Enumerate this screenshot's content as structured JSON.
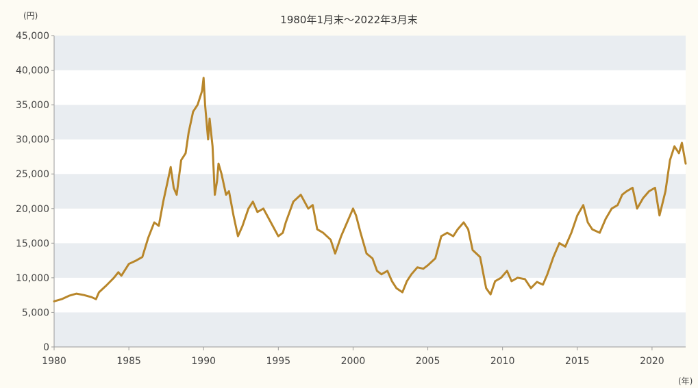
{
  "chart_data": {
    "type": "line",
    "title": "",
    "subtitle": "1980年1月末〜2022年3月末",
    "ylabel_unit": "(円)",
    "xlabel_unit": "(年)",
    "ylim": [
      0,
      45000
    ],
    "xlim": [
      1980,
      2022.25
    ],
    "yticks": [
      "0",
      "5,000",
      "10,000",
      "15,000",
      "20,000",
      "25,000",
      "30,000",
      "35,000",
      "40,000",
      "45,000"
    ],
    "ytick_values": [
      0,
      5000,
      10000,
      15000,
      20000,
      25000,
      30000,
      35000,
      40000,
      45000
    ],
    "xticks": [
      "1980",
      "1985",
      "1990",
      "1995",
      "2000",
      "2005",
      "2010",
      "2015",
      "2020"
    ],
    "xtick_values": [
      1980,
      1985,
      1990,
      1995,
      2000,
      2005,
      2010,
      2015,
      2020
    ],
    "grid": "alternating horizontal bands",
    "colors": {
      "line": "#b8862a",
      "band": "#e9edf1",
      "background": "#ffffff",
      "axis": "#999999"
    },
    "series": [
      {
        "x": [
          1980.0,
          1980.5,
          1981.0,
          1981.5,
          1982.0,
          1982.5,
          1982.8,
          1983.0,
          1983.5,
          1984.0,
          1984.3,
          1984.5,
          1985.0,
          1985.5,
          1985.9,
          1986.3,
          1986.7,
          1987.0,
          1987.3,
          1987.6,
          1987.8,
          1988.0,
          1988.2,
          1988.5,
          1988.8,
          1989.0,
          1989.3,
          1989.6,
          1989.9,
          1990.0,
          1990.1,
          1990.3,
          1990.4,
          1990.6,
          1990.75,
          1990.9,
          1991.0,
          1991.2,
          1991.5,
          1991.7,
          1992.0,
          1992.3,
          1992.6,
          1993.0,
          1993.3,
          1993.6,
          1994.0,
          1994.5,
          1995.0,
          1995.3,
          1995.5,
          1996.0,
          1996.5,
          1997.0,
          1997.3,
          1997.6,
          1998.0,
          1998.5,
          1998.8,
          1999.2,
          1999.6,
          2000.0,
          2000.2,
          2000.5,
          2000.9,
          2001.3,
          2001.6,
          2001.9,
          2002.3,
          2002.6,
          2002.9,
          2003.3,
          2003.6,
          2003.9,
          2004.3,
          2004.7,
          2005.0,
          2005.5,
          2005.9,
          2006.3,
          2006.7,
          2007.0,
          2007.4,
          2007.7,
          2008.0,
          2008.5,
          2008.9,
          2009.2,
          2009.5,
          2009.9,
          2010.3,
          2010.6,
          2011.0,
          2011.5,
          2011.9,
          2012.3,
          2012.7,
          2013.0,
          2013.4,
          2013.8,
          2014.2,
          2014.6,
          2015.0,
          2015.4,
          2015.7,
          2016.0,
          2016.5,
          2016.9,
          2017.3,
          2017.7,
          2018.0,
          2018.3,
          2018.7,
          2019.0,
          2019.4,
          2019.8,
          2020.2,
          2020.5,
          2020.9,
          2021.2,
          2021.5,
          2021.8,
          2022.0,
          2022.25
        ],
        "y": [
          6600,
          6900,
          7400,
          7700,
          7500,
          7200,
          6900,
          7900,
          8900,
          10000,
          10800,
          10300,
          12000,
          12500,
          13000,
          15800,
          18000,
          17500,
          21000,
          24000,
          26000,
          23000,
          22000,
          27000,
          28000,
          31000,
          34000,
          35000,
          37000,
          38900,
          35000,
          30000,
          33000,
          29000,
          22000,
          24000,
          26500,
          25000,
          22000,
          22500,
          19000,
          16000,
          17500,
          20000,
          21000,
          19500,
          20000,
          18000,
          16000,
          16500,
          18000,
          21000,
          22000,
          20000,
          20500,
          17000,
          16500,
          15500,
          13500,
          16000,
          18000,
          20000,
          19000,
          16500,
          13500,
          12800,
          11000,
          10500,
          11000,
          9500,
          8500,
          7900,
          9500,
          10500,
          11500,
          11300,
          11800,
          12800,
          16000,
          16500,
          16000,
          17000,
          18000,
          17000,
          14000,
          13000,
          8500,
          7600,
          9500,
          10000,
          11000,
          9500,
          10000,
          9800,
          8500,
          9400,
          9000,
          10500,
          13000,
          15000,
          14500,
          16500,
          19000,
          20500,
          18000,
          17000,
          16500,
          18500,
          20000,
          20500,
          22000,
          22500,
          23000,
          20000,
          21500,
          22500,
          23000,
          19000,
          22500,
          27000,
          29000,
          28000,
          29500,
          26500
        ]
      }
    ]
  }
}
